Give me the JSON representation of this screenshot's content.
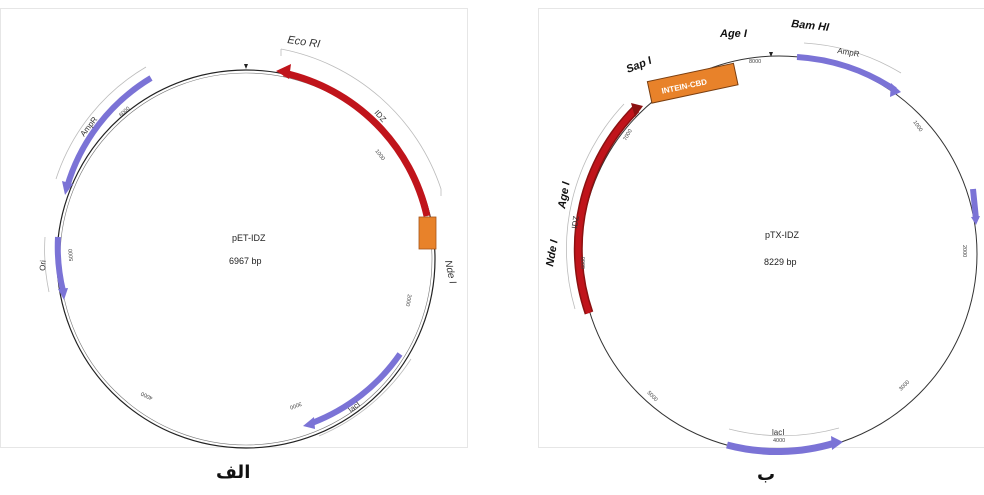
{
  "panel_a": {
    "name": "pET-IDZ",
    "size": "6967 bp",
    "caption": "الف",
    "sites": {
      "eco_ri": "Eco RI",
      "nde_i": "Nde I"
    },
    "features": {
      "idz": "IDZ",
      "ampr": "AmpR",
      "ori": "Ori",
      "laci": "lacI"
    },
    "ticks": {
      "t1000": "1000",
      "t2000": "2000",
      "t3000": "3000",
      "t4000": "4000",
      "t5000": "5000",
      "t6000": "6000"
    }
  },
  "panel_b": {
    "name": "pTX-IDZ",
    "size": "8229 bp",
    "caption": "ب",
    "sites": {
      "sap_i": "Sap I",
      "age_i_top": "Age I",
      "bam_hi": "Bam HI",
      "age_i_left": "Age I",
      "nde_i": "Nde I"
    },
    "features": {
      "intein": "INTEIN-CBD",
      "ampr": "AmpR",
      "idz": "IDZ",
      "laci": "lacI"
    },
    "ticks": {
      "t8000": "8000",
      "t1000": "1000",
      "t2000": "2000",
      "t3000": "3000",
      "t4000": "4000",
      "t5000": "5000",
      "t6000": "6000",
      "t7000": "7000"
    }
  },
  "colors": {
    "idz": "#c0141b",
    "ampr": "#7b73d6",
    "box": "#e8822a",
    "backbone": "#222222"
  }
}
